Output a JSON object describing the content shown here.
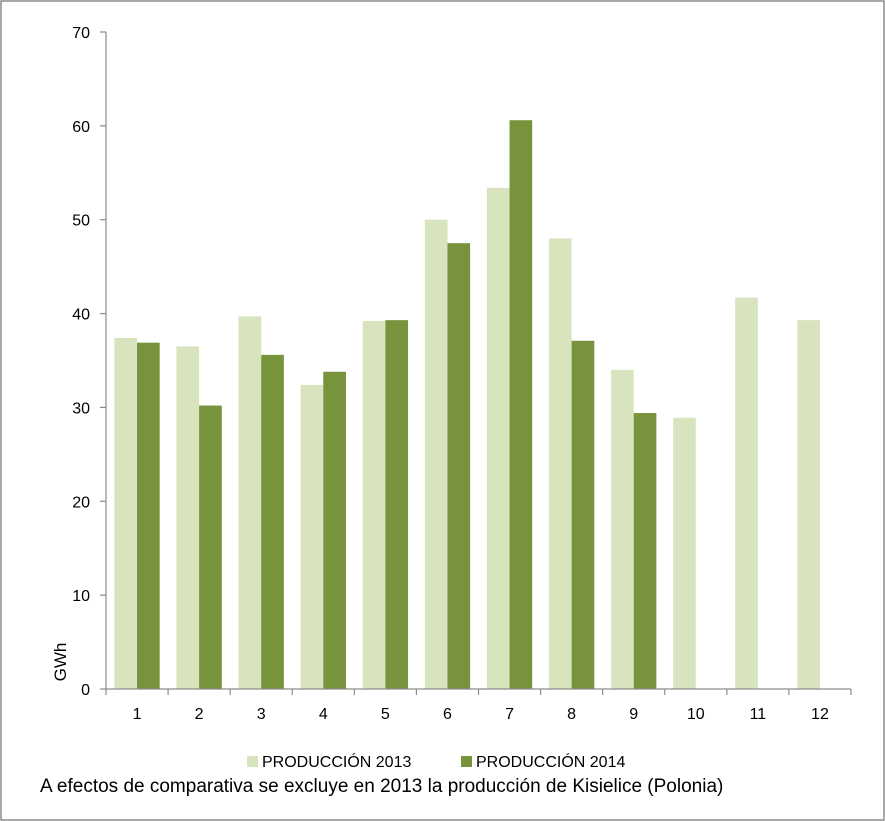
{
  "chart_data": {
    "type": "bar",
    "ylabel": "GWh",
    "xlabel": "",
    "ylim": [
      0,
      70
    ],
    "yticks": [
      0,
      10,
      20,
      30,
      40,
      50,
      60,
      70
    ],
    "categories": [
      "1",
      "2",
      "3",
      "4",
      "5",
      "6",
      "7",
      "8",
      "9",
      "10",
      "11",
      "12"
    ],
    "series": [
      {
        "name": "PRODUCCIÓN 2013",
        "color": "#d7e4bd",
        "values": [
          37.4,
          36.5,
          39.7,
          32.4,
          39.2,
          50.0,
          53.4,
          48.0,
          34.0,
          28.9,
          41.7,
          39.3
        ]
      },
      {
        "name": "PRODUCCIÓN 2014",
        "color": "#77933c",
        "values": [
          36.9,
          30.2,
          35.6,
          33.8,
          39.3,
          47.5,
          60.6,
          37.1,
          29.4,
          null,
          null,
          null
        ]
      }
    ],
    "grid": false,
    "legend_position": "bottom",
    "note": "A efectos de comparativa se excluye en 2013 la producción de Kisielice (Polonia)"
  }
}
